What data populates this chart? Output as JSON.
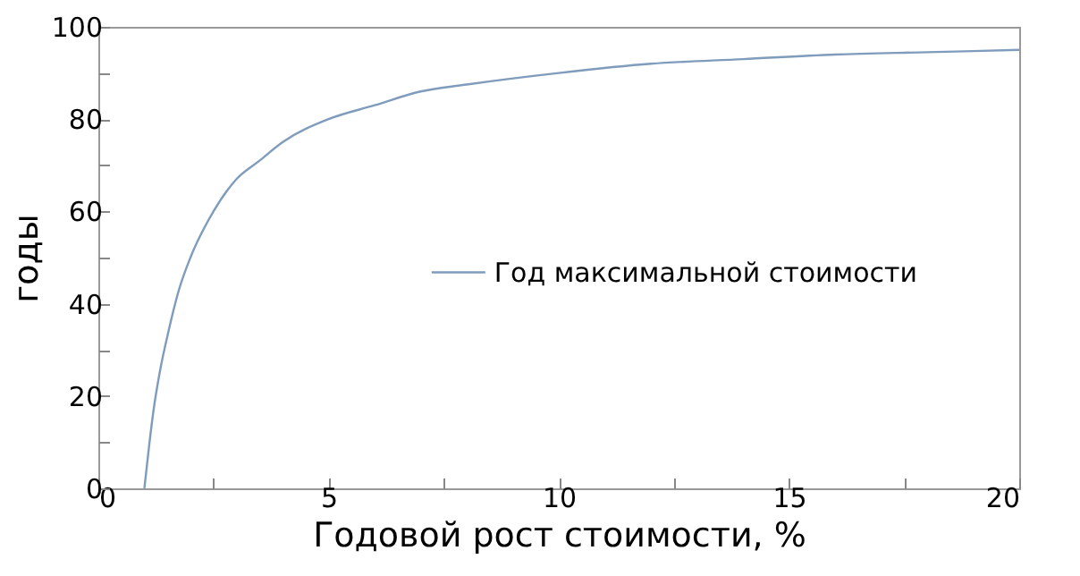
{
  "chart_data": {
    "type": "line",
    "xlabel": "Годовой рост стоимости, %",
    "ylabel": "годы",
    "xlim": [
      0,
      20
    ],
    "ylim": [
      0,
      100
    ],
    "xticks": [
      0,
      {
        "value": 2.5,
        "label": null
      },
      5,
      {
        "value": 7.5,
        "label": null
      },
      10,
      {
        "value": 12.5,
        "label": null
      },
      15,
      {
        "value": 17.5,
        "label": null
      },
      20
    ],
    "yticks": [
      0,
      {
        "value": 10,
        "label": null
      },
      20,
      {
        "value": 30,
        "label": null
      },
      40,
      {
        "value": 50,
        "label": null
      },
      60,
      {
        "value": 70,
        "label": null
      },
      80,
      {
        "value": 90,
        "label": null
      },
      100
    ],
    "legend": "right",
    "grid": false,
    "series": [
      {
        "name": "Год максимальной стоимости",
        "color": "#7f9cbc",
        "x": [
          1,
          1.1,
          1.2,
          1.35,
          1.5,
          1.75,
          2,
          2.5,
          3,
          3.5,
          4,
          5,
          6,
          7,
          8,
          10,
          12,
          14,
          16,
          18,
          20
        ],
        "values": [
          0,
          9,
          17,
          26,
          33,
          43,
          50,
          60,
          67,
          71,
          75,
          80,
          83,
          86,
          87.5,
          90,
          92,
          93,
          94,
          94.5,
          95
        ]
      }
    ]
  }
}
